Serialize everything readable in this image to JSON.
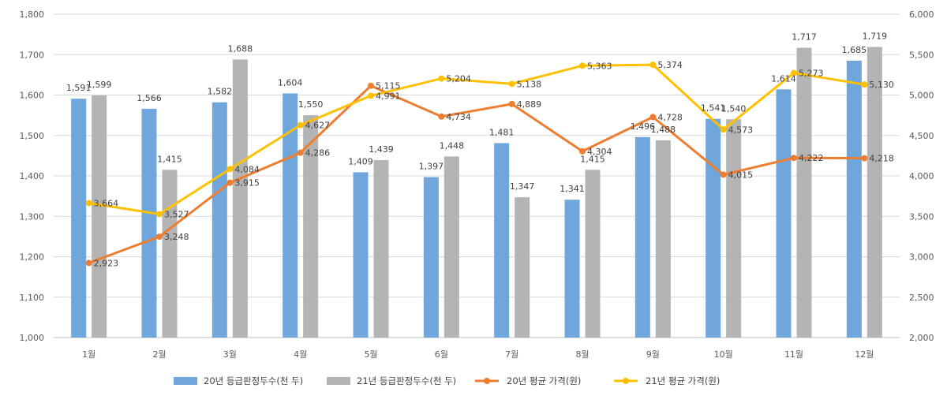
{
  "chart_data": {
    "type": "bar",
    "categories": [
      "1월",
      "2월",
      "3월",
      "4월",
      "5월",
      "6월",
      "7월",
      "8월",
      "9월",
      "10월",
      "11월",
      "12월"
    ],
    "series": [
      {
        "name": "20년 등급판정두수(천 두)",
        "kind": "bar",
        "axis": "left",
        "color": "#6FA6DC",
        "values": [
          1591,
          1566,
          1582,
          1604,
          1409,
          1397,
          1481,
          1341,
          1496,
          1541,
          1614,
          1685
        ],
        "labels": [
          "1,591",
          "1,566",
          "1,582",
          "1,604",
          "1,409",
          "1,397",
          "1,481",
          "1,341",
          "1,496",
          "1,541",
          "1,614",
          "1,685"
        ]
      },
      {
        "name": "21년 등급판정두수(천 두)",
        "kind": "bar",
        "axis": "left",
        "color": "#B4B4B4",
        "values": [
          1599,
          1415,
          1688,
          1550,
          1439,
          1448,
          1347,
          1415,
          1488,
          1540,
          1717,
          1719
        ],
        "labels": [
          "1,599",
          "1,415",
          "1,688",
          "1,550",
          "1,439",
          "1,448",
          "1,347",
          "1,415",
          "1,488",
          "1,540",
          "1,717",
          "1,719"
        ]
      },
      {
        "name": "20년 평균 가격(원)",
        "kind": "line",
        "axis": "right",
        "color": "#ED7D31",
        "values": [
          2923,
          3248,
          3915,
          4286,
          5115,
          4734,
          4889,
          4304,
          4728,
          4015,
          4222,
          4218
        ],
        "labels": [
          "2,923",
          "3,248",
          "3,915",
          "4,286",
          "5,115",
          "4,734",
          "4,889",
          "4,304",
          "4,728",
          "4,015",
          "4,222",
          "4,218"
        ]
      },
      {
        "name": "21년 평균 가격(원)",
        "kind": "line",
        "axis": "right",
        "color": "#FFC000",
        "values": [
          3664,
          3527,
          4084,
          4627,
          4991,
          5204,
          5138,
          5363,
          5374,
          4573,
          5273,
          5130
        ],
        "labels": [
          "3,664",
          "3,527",
          "4,084",
          "4,627",
          "4,991",
          "5,204",
          "5,138",
          "5,363",
          "5,374",
          "4,573",
          "5,273",
          "5,130"
        ]
      }
    ],
    "ylim_left": [
      1000,
      1800
    ],
    "ylim_right": [
      2000,
      6000
    ],
    "yticks_left": [
      "1,000",
      "1,100",
      "1,200",
      "1,300",
      "1,400",
      "1,500",
      "1,600",
      "1,700",
      "1,800"
    ],
    "yticks_right": [
      "2,000",
      "2,500",
      "3,000",
      "3,500",
      "4,000",
      "4,500",
      "5,000",
      "5,500",
      "6,000"
    ],
    "grid": true,
    "legend": "bottom",
    "title": "",
    "xlabel": "",
    "ylabel": ""
  }
}
